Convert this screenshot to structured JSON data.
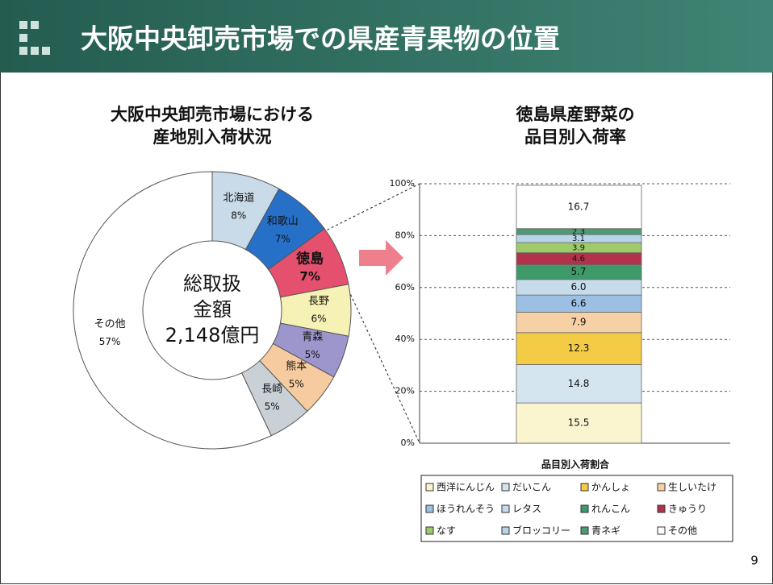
{
  "slide": {
    "title": "大阪中央卸売市場での県産青果物の位置",
    "page": "9"
  },
  "chart_data": [
    {
      "type": "donut",
      "title": [
        "大阪中央卸売市場における",
        "産地別入荷状況"
      ],
      "annotation": [
        "総取扱",
        "金額",
        "2,148億円"
      ],
      "categories": [
        "北海道",
        "和歌山",
        "徳島",
        "長野",
        "青森",
        "熊本",
        "長崎",
        "その他"
      ],
      "values": [
        8,
        7,
        7,
        6,
        5,
        5,
        5,
        57
      ],
      "value_labels": [
        "8%",
        "7%",
        "7%",
        "6%",
        "5%",
        "5%",
        "5%",
        "57%"
      ],
      "colors": [
        "#c9dbe9",
        "#2670c8",
        "#e5506e",
        "#f6f1b4",
        "#9d96cc",
        "#f6cba0",
        "#c9d1d7",
        "#ffffff"
      ]
    },
    {
      "type": "bar",
      "stacked": true,
      "title": [
        "徳島県産野菜の",
        "品目別入荷率"
      ],
      "xlabel": "品目別入荷割合",
      "ylim": [
        0,
        100
      ],
      "yticks": [
        {
          "value": 0,
          "label": "0%"
        },
        {
          "value": 20,
          "label": "20%"
        },
        {
          "value": 40,
          "label": "40%"
        },
        {
          "value": 60,
          "label": "60%"
        },
        {
          "value": 80,
          "label": "80%"
        },
        {
          "value": 100,
          "label": "100%"
        }
      ],
      "grid": true,
      "series": [
        {
          "name": "西洋にんじん",
          "color": "#fbf5cf",
          "values": [
            15.5
          ],
          "value_labels": [
            "15.5"
          ]
        },
        {
          "name": "だいこん",
          "color": "#d5e5ef",
          "values": [
            14.8
          ],
          "value_labels": [
            "14.8"
          ]
        },
        {
          "name": "かんしょ",
          "color": "#f3cb45",
          "values": [
            12.3
          ],
          "value_labels": [
            "12.3"
          ]
        },
        {
          "name": "生しいたけ",
          "color": "#f6d1a6",
          "values": [
            7.9
          ],
          "value_labels": [
            "7.9"
          ]
        },
        {
          "name": "ほうれんそう",
          "color": "#9cc0e4",
          "values": [
            6.6
          ],
          "value_labels": [
            "6.6"
          ]
        },
        {
          "name": "レタス",
          "color": "#c6dcea",
          "values": [
            6.0
          ],
          "value_labels": [
            "6.0"
          ]
        },
        {
          "name": "れんこん",
          "color": "#3f9a6a",
          "values": [
            5.7
          ],
          "value_labels": [
            "5.7"
          ]
        },
        {
          "name": "きゅうり",
          "color": "#b2324c",
          "values": [
            4.6
          ],
          "value_labels": [
            "4.6"
          ]
        },
        {
          "name": "なす",
          "color": "#9fca6a",
          "values": [
            3.9
          ],
          "value_labels": [
            "3.9"
          ]
        },
        {
          "name": "ブロッコリー",
          "color": "#b8d4e8",
          "values": [
            3.1
          ],
          "value_labels": [
            "3.1"
          ]
        },
        {
          "name": "青ネギ",
          "color": "#4e9a74",
          "values": [
            2.3
          ],
          "value_labels": [
            "2.3"
          ]
        },
        {
          "name": "その他",
          "color": "#ffffff",
          "values": [
            16.7
          ],
          "value_labels": [
            "16.7"
          ]
        }
      ]
    }
  ]
}
